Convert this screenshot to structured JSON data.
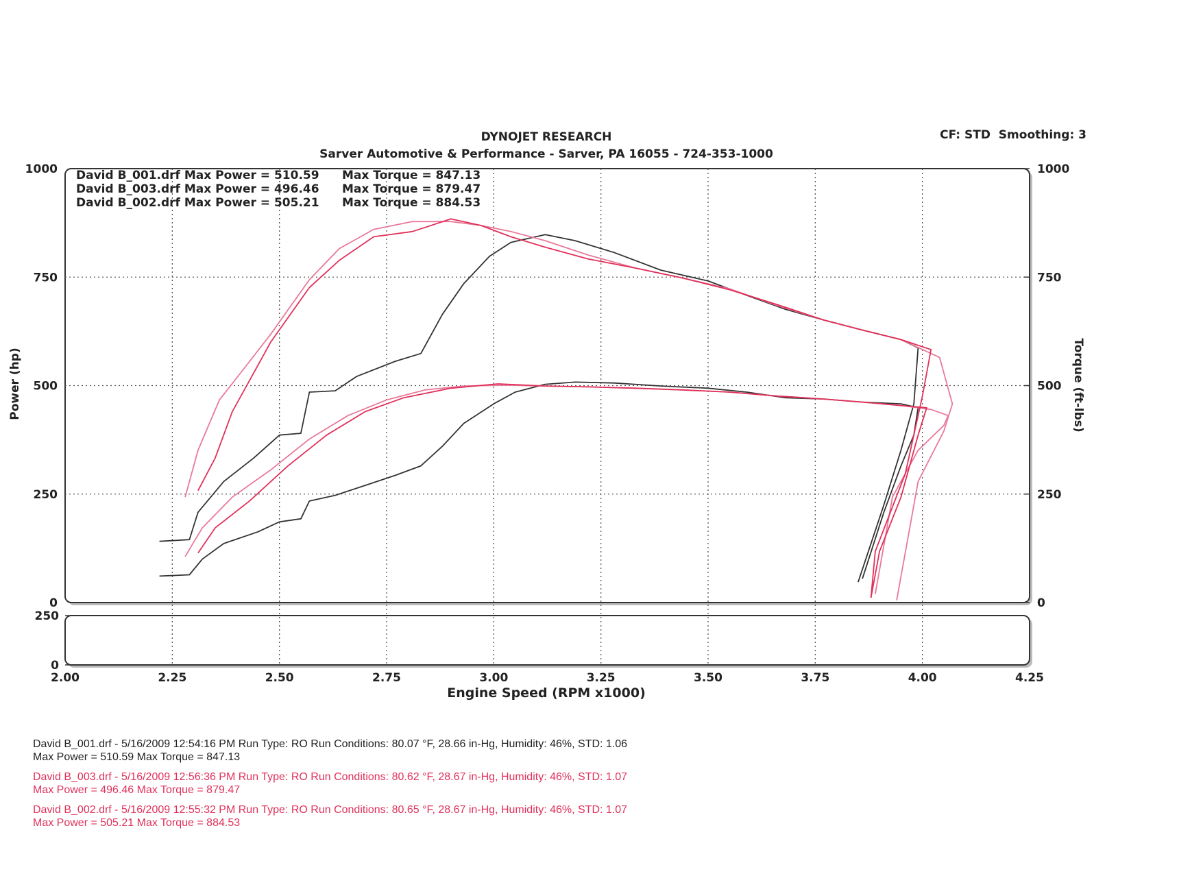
{
  "chart_data": {
    "type": "line",
    "title": "DYNOJET RESEARCH",
    "subtitle": "Sarver Automotive & Performance - Sarver, PA 16055 - 724-353-1000",
    "settings_label": "CF: STD  Smoothing: 3",
    "x_label": "Engine Speed (RPM x1000)",
    "y_label": "Power (hp)",
    "y2_label": "Torque (ft-lbs)",
    "xlim": [
      2,
      4.25
    ],
    "xticks": [
      {
        "value": 2,
        "label": "2.00"
      },
      {
        "value": 2.25,
        "label": "2.25"
      },
      {
        "value": 2.5,
        "label": "2.50"
      },
      {
        "value": 2.75,
        "label": "2.75"
      },
      {
        "value": 3,
        "label": "3.00"
      },
      {
        "value": 3.25,
        "label": "3.25"
      },
      {
        "value": 3.5,
        "label": "3.50"
      },
      {
        "value": 3.75,
        "label": "3.75"
      },
      {
        "value": 4,
        "label": "4.00"
      },
      {
        "value": 4.25,
        "label": "4.25"
      }
    ],
    "ylim": [
      0,
      1000
    ],
    "yticks": [
      0,
      250,
      500,
      750,
      1000
    ],
    "y2lim": [
      0,
      1000
    ],
    "y2ticks": [
      0,
      250,
      500,
      750,
      1000
    ],
    "grid": true,
    "lower_panel": {
      "ylim": [
        0,
        250
      ],
      "yticks": [
        0,
        250
      ]
    },
    "legend": [
      {
        "power": "David B_001.drf Max Power = 510.59",
        "torque": "Max Torque = 847.13"
      },
      {
        "power": "David B_003.drf Max Power = 496.46",
        "torque": "Max Torque = 879.47"
      },
      {
        "power": "David B_002.drf Max Power = 505.21",
        "torque": "Max Torque = 884.53"
      }
    ],
    "series": [
      {
        "name": "David B_001.drf",
        "color": "#333333",
        "x": [
          2.22,
          2.29,
          2.32,
          2.37,
          2.45,
          2.5,
          2.55,
          2.57,
          2.63,
          2.7,
          2.77,
          2.83,
          2.88,
          2.93,
          3.0,
          3.05,
          3.12,
          3.19,
          3.28,
          3.39,
          3.5,
          3.59,
          3.68,
          3.77,
          3.86,
          3.95,
          3.99,
          3.98,
          3.95,
          3.91,
          3.86
        ],
        "values": [
          61,
          64,
          100,
          136,
          163,
          186,
          193,
          234,
          247,
          270,
          293,
          315,
          360,
          413,
          458,
          485,
          503,
          508,
          506,
          499,
          494,
          485,
          472,
          469,
          462,
          458,
          449,
          386,
          315,
          208,
          55
        ]
      },
      {
        "name": "David B_001.drf",
        "color": "#333333",
        "axis": "y2",
        "x": [
          2.22,
          2.29,
          2.31,
          2.37,
          2.44,
          2.5,
          2.55,
          2.57,
          2.63,
          2.68,
          2.77,
          2.83,
          2.88,
          2.93,
          2.99,
          3.04,
          3.12,
          3.19,
          3.28,
          3.39,
          3.5,
          3.59,
          3.68,
          3.77,
          3.86,
          3.95,
          3.99,
          3.98,
          3.95,
          3.91,
          3.85
        ],
        "values": [
          141,
          145,
          208,
          279,
          333,
          386,
          390,
          485,
          488,
          521,
          556,
          574,
          664,
          735,
          798,
          830,
          848,
          834,
          807,
          766,
          741,
          708,
          676,
          651,
          628,
          606,
          587,
          458,
          351,
          225,
          47
        ]
      },
      {
        "name": "David B_003.drf",
        "color": "#e8799a",
        "x": [
          2.28,
          2.32,
          2.39,
          2.48,
          2.57,
          2.66,
          2.75,
          2.84,
          2.93,
          3.03,
          3.12,
          3.22,
          3.33,
          3.44,
          3.55,
          3.66,
          3.77,
          3.86,
          3.95,
          4.02,
          4.06,
          4.05,
          3.99,
          3.93,
          3.89
        ],
        "values": [
          106,
          172,
          243,
          306,
          377,
          431,
          467,
          490,
          499,
          501,
          499,
          497,
          494,
          490,
          485,
          476,
          469,
          462,
          454,
          445,
          431,
          408,
          351,
          243,
          20
        ]
      },
      {
        "name": "David B_003.drf",
        "color": "#e8799a",
        "axis": "y2",
        "x": [
          2.28,
          2.31,
          2.36,
          2.41,
          2.48,
          2.57,
          2.64,
          2.72,
          2.81,
          2.9,
          2.97,
          3.04,
          3.12,
          3.22,
          3.33,
          3.44,
          3.55,
          3.66,
          3.77,
          3.86,
          3.95,
          4.04,
          4.07,
          4.05,
          3.99,
          3.94
        ],
        "values": [
          243,
          351,
          467,
          530,
          619,
          744,
          816,
          860,
          878,
          878,
          869,
          855,
          834,
          801,
          771,
          748,
          723,
          685,
          651,
          628,
          606,
          565,
          458,
          395,
          279,
          5
        ]
      },
      {
        "name": "David B_002.drf",
        "color": "#e0305a",
        "x": [
          2.31,
          2.35,
          2.43,
          2.52,
          2.61,
          2.7,
          2.79,
          2.9,
          3.01,
          3.12,
          3.22,
          3.33,
          3.44,
          3.55,
          3.66,
          3.77,
          3.86,
          3.95,
          4.01,
          3.99,
          3.95,
          3.9,
          3.88
        ],
        "values": [
          114,
          172,
          234,
          315,
          386,
          440,
          472,
          494,
          504,
          499,
          497,
          494,
          490,
          485,
          476,
          469,
          462,
          454,
          449,
          386,
          243,
          118,
          11
        ]
      },
      {
        "name": "David B_002.drf",
        "color": "#e0305a",
        "axis": "y2",
        "x": [
          2.31,
          2.35,
          2.39,
          2.48,
          2.57,
          2.64,
          2.72,
          2.81,
          2.9,
          2.97,
          3.04,
          3.12,
          3.22,
          3.33,
          3.44,
          3.55,
          3.66,
          3.77,
          3.86,
          3.95,
          4.02,
          4.0,
          3.96,
          3.89,
          3.88
        ],
        "values": [
          258,
          333,
          440,
          601,
          726,
          789,
          843,
          855,
          884,
          869,
          843,
          819,
          792,
          771,
          748,
          721,
          687,
          651,
          628,
          606,
          583,
          476,
          297,
          118,
          11
        ]
      }
    ],
    "footer": [
      {
        "line1": "David B_001.drf - 5/16/2009 12:54:16 PM  Run Type: RO  Run Conditions: 80.07 °F, 28.66 in-Hg,  Humidity:  46%, STD: 1.06",
        "line2": "Max Power = 510.59  Max Torque = 847.13",
        "color": "#222222"
      },
      {
        "line1": "David B_003.drf - 5/16/2009 12:56:36 PM  Run Type: RO  Run Conditions: 80.62 °F, 28.67 in-Hg,  Humidity:  46%, STD: 1.07",
        "line2": "Max Power = 496.46  Max Torque = 879.47",
        "color": "#e0305a"
      },
      {
        "line1": "David B_002.drf - 5/16/2009 12:55:32 PM  Run Type: RO  Run Conditions: 80.65 °F, 28.67 in-Hg,  Humidity:  46%, STD: 1.07",
        "line2": "Max Power = 505.21  Max Torque = 884.53",
        "color": "#e0305a"
      }
    ]
  }
}
